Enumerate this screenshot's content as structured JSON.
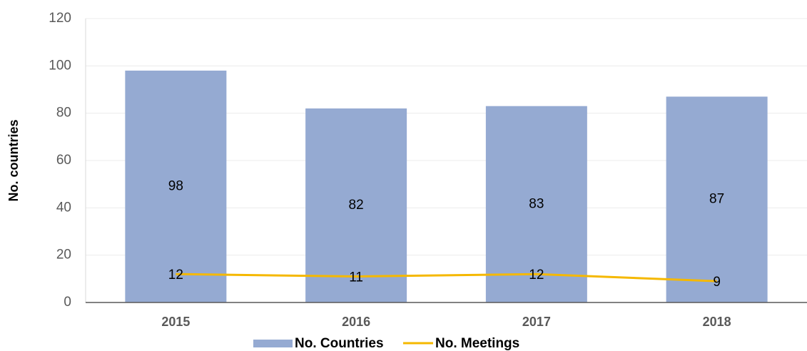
{
  "chart_data": {
    "type": "bar",
    "ylabel": "No. countries",
    "categories": [
      "2015",
      "2016",
      "2017",
      "2018"
    ],
    "series": [
      {
        "name": "No. Countries",
        "type": "bar",
        "color": "#95aad2",
        "values": [
          98,
          82,
          83,
          87
        ]
      },
      {
        "name": "No. Meetings",
        "type": "line",
        "color": "#f5b800",
        "values": [
          12,
          11,
          12,
          9
        ]
      }
    ],
    "ylim": [
      0,
      120
    ],
    "yticks": [
      0,
      20,
      40,
      60,
      80,
      100,
      120
    ],
    "grid": true,
    "legend": "bottom"
  }
}
